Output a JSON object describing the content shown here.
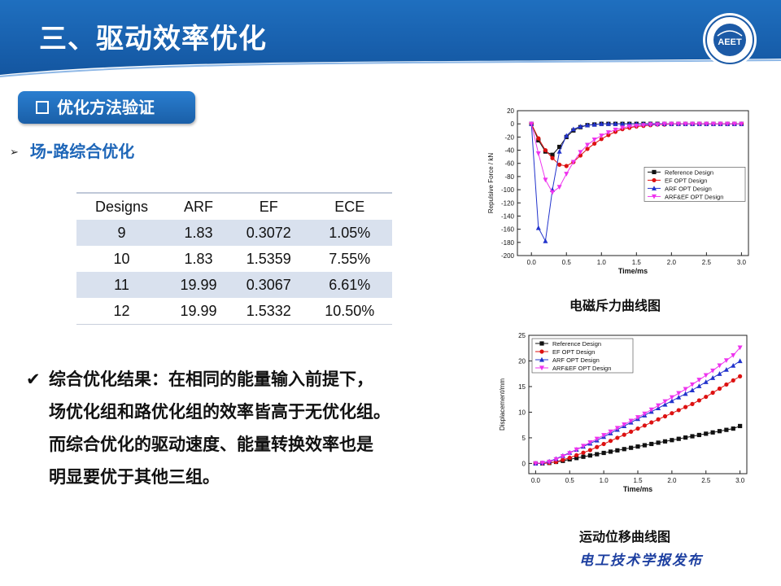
{
  "header": {
    "title": "三、驱动效率优化",
    "logo_text": "AEET"
  },
  "section_tag": "优化方法验证",
  "subtitle": "场-路综合优化",
  "table": {
    "headers": [
      "Designs",
      "ARF",
      "EF",
      "ECE"
    ],
    "rows": [
      [
        "9",
        "1.83",
        "0.3072",
        "1.05%"
      ],
      [
        "10",
        "1.83",
        "1.5359",
        "7.55%"
      ],
      [
        "11",
        "19.99",
        "0.3067",
        "6.61%"
      ],
      [
        "12",
        "19.99",
        "1.5332",
        "10.50%"
      ]
    ]
  },
  "conclusion": {
    "lines": [
      "综合优化结果：在相同的能量输入前提下，",
      "场优化组和路优化组的效率皆高于无优化组。",
      "而综合优化的驱动速度、能量转换效率也是",
      "明显要优于其他三组。"
    ]
  },
  "captions": {
    "force": "电磁斥力曲线图",
    "displacement": "运动位移曲线图"
  },
  "publisher": "电工技术学报发布",
  "chart_data": [
    {
      "type": "line",
      "title": "",
      "xlabel": "Time/ms",
      "ylabel": "Repulsive Force / kN",
      "xlim": [
        -0.2,
        3.1
      ],
      "ylim": [
        -200,
        20
      ],
      "xticks": [
        0.0,
        0.5,
        1.0,
        1.5,
        2.0,
        2.5,
        3.0
      ],
      "yticks": [
        20,
        0,
        -20,
        -40,
        -60,
        -80,
        -100,
        -120,
        -140,
        -160,
        -180,
        -200
      ],
      "legend": "middle-right",
      "series": [
        {
          "name": "Reference Design",
          "color": "#111111",
          "marker": "square",
          "x": [
            0.0,
            0.1,
            0.2,
            0.3,
            0.4,
            0.5,
            0.6,
            0.7,
            0.8,
            0.9,
            1.0,
            1.1,
            1.2,
            1.3,
            1.4,
            1.5,
            1.6,
            1.7,
            1.8,
            1.9,
            2.0,
            2.1,
            2.2,
            2.3,
            2.4,
            2.5,
            2.6,
            2.7,
            2.8,
            2.9,
            3.0
          ],
          "y": [
            0,
            -25,
            -42,
            -47,
            -35,
            -20,
            -10,
            -5,
            -2,
            -1,
            0,
            0,
            0,
            0,
            0,
            0,
            0,
            0,
            0,
            0,
            0,
            0,
            0,
            0,
            0,
            0,
            0,
            0,
            0,
            0,
            0
          ]
        },
        {
          "name": "EF OPT Design",
          "color": "#dd1111",
          "marker": "circle",
          "x": [
            0.0,
            0.1,
            0.2,
            0.3,
            0.4,
            0.5,
            0.6,
            0.7,
            0.8,
            0.9,
            1.0,
            1.1,
            1.2,
            1.3,
            1.4,
            1.5,
            1.6,
            1.7,
            1.8,
            1.9,
            2.0,
            2.1,
            2.2,
            2.3,
            2.4,
            2.5,
            2.6,
            2.7,
            2.8,
            2.9,
            3.0
          ],
          "y": [
            0,
            -22,
            -40,
            -52,
            -62,
            -64,
            -58,
            -48,
            -38,
            -30,
            -23,
            -17,
            -12,
            -8,
            -6,
            -4,
            -3,
            -2,
            -1,
            -1,
            0,
            0,
            0,
            0,
            0,
            0,
            0,
            0,
            0,
            0,
            0
          ]
        },
        {
          "name": "ARF OPT Design",
          "color": "#2233cc",
          "marker": "triangle",
          "x": [
            0.0,
            0.1,
            0.2,
            0.3,
            0.4,
            0.5,
            0.6,
            0.7,
            0.8,
            0.9,
            1.0,
            1.1,
            1.2,
            1.3,
            1.4,
            1.5,
            1.6,
            1.7,
            1.8,
            1.9,
            2.0,
            2.1,
            2.2,
            2.3,
            2.4,
            2.5,
            2.6,
            2.7,
            2.8,
            2.9,
            3.0
          ],
          "y": [
            0,
            -158,
            -178,
            -100,
            -42,
            -18,
            -8,
            -4,
            -2,
            -1,
            0,
            0,
            0,
            0,
            0,
            0,
            0,
            0,
            0,
            0,
            0,
            0,
            0,
            0,
            0,
            0,
            0,
            0,
            0,
            0,
            0
          ]
        },
        {
          "name": "ARF&EF OPT Design",
          "color": "#ee33ee",
          "marker": "triangle-down",
          "x": [
            0.0,
            0.1,
            0.2,
            0.3,
            0.4,
            0.5,
            0.6,
            0.7,
            0.8,
            0.9,
            1.0,
            1.1,
            1.2,
            1.3,
            1.4,
            1.5,
            1.6,
            1.7,
            1.8,
            1.9,
            2.0,
            2.1,
            2.2,
            2.3,
            2.4,
            2.5,
            2.6,
            2.7,
            2.8,
            2.9,
            3.0
          ],
          "y": [
            0,
            -45,
            -85,
            -104,
            -96,
            -76,
            -58,
            -43,
            -32,
            -24,
            -18,
            -13,
            -9,
            -6,
            -4,
            -3,
            -2,
            -1,
            -1,
            0,
            0,
            0,
            0,
            0,
            0,
            0,
            0,
            0,
            0,
            0,
            0
          ]
        }
      ]
    },
    {
      "type": "line",
      "title": "",
      "xlabel": "Time/ms",
      "ylabel": "Displacement/mm",
      "xlim": [
        -0.1,
        3.1
      ],
      "ylim": [
        -2,
        25
      ],
      "xticks": [
        0.0,
        0.5,
        1.0,
        1.5,
        2.0,
        2.5,
        3.0
      ],
      "yticks": [
        0,
        5,
        10,
        15,
        20,
        25
      ],
      "legend": "top-left",
      "series": [
        {
          "name": "Reference Design",
          "color": "#111111",
          "marker": "square",
          "x": [
            0.0,
            0.1,
            0.2,
            0.3,
            0.4,
            0.5,
            0.6,
            0.7,
            0.8,
            0.9,
            1.0,
            1.1,
            1.2,
            1.3,
            1.4,
            1.5,
            1.6,
            1.7,
            1.8,
            1.9,
            2.0,
            2.1,
            2.2,
            2.3,
            2.4,
            2.5,
            2.6,
            2.7,
            2.8,
            2.9,
            3.0
          ],
          "y": [
            0,
            0,
            0.1,
            0.3,
            0.5,
            0.8,
            1.05,
            1.3,
            1.55,
            1.8,
            2.05,
            2.3,
            2.55,
            2.8,
            3.05,
            3.3,
            3.55,
            3.8,
            4.05,
            4.3,
            4.55,
            4.8,
            5.05,
            5.3,
            5.55,
            5.8,
            6.05,
            6.3,
            6.55,
            6.8,
            7.3
          ]
        },
        {
          "name": "EF OPT Design",
          "color": "#dd1111",
          "marker": "circle",
          "x": [
            0.0,
            0.1,
            0.2,
            0.3,
            0.4,
            0.5,
            0.6,
            0.7,
            0.8,
            0.9,
            1.0,
            1.1,
            1.2,
            1.3,
            1.4,
            1.5,
            1.6,
            1.7,
            1.8,
            1.9,
            2.0,
            2.1,
            2.2,
            2.3,
            2.4,
            2.5,
            2.6,
            2.7,
            2.8,
            2.9,
            3.0
          ],
          "y": [
            0,
            0,
            0.1,
            0.3,
            0.7,
            1.1,
            1.6,
            2.1,
            2.6,
            3.2,
            3.8,
            4.4,
            5.0,
            5.6,
            6.2,
            6.8,
            7.4,
            8.0,
            8.6,
            9.2,
            9.8,
            10.4,
            11.0,
            11.6,
            12.3,
            13.0,
            13.8,
            14.6,
            15.4,
            16.2,
            17.0
          ]
        },
        {
          "name": "ARF OPT Design",
          "color": "#2233cc",
          "marker": "triangle",
          "x": [
            0.0,
            0.1,
            0.2,
            0.3,
            0.4,
            0.5,
            0.6,
            0.7,
            0.8,
            0.9,
            1.0,
            1.1,
            1.2,
            1.3,
            1.4,
            1.5,
            1.6,
            1.7,
            1.8,
            1.9,
            2.0,
            2.1,
            2.2,
            2.3,
            2.4,
            2.5,
            2.6,
            2.7,
            2.8,
            2.9,
            3.0
          ],
          "y": [
            0,
            0.1,
            0.4,
            0.9,
            1.5,
            2.1,
            2.7,
            3.3,
            3.9,
            4.5,
            5.2,
            5.9,
            6.6,
            7.3,
            8.0,
            8.7,
            9.4,
            10.1,
            10.8,
            11.5,
            12.2,
            12.9,
            13.6,
            14.3,
            15.1,
            15.9,
            16.7,
            17.5,
            18.3,
            19.1,
            20.0
          ]
        },
        {
          "name": "ARF&EF OPT Design",
          "color": "#ee33ee",
          "marker": "triangle-down",
          "x": [
            0.0,
            0.1,
            0.2,
            0.3,
            0.4,
            0.5,
            0.6,
            0.7,
            0.8,
            0.9,
            1.0,
            1.1,
            1.2,
            1.3,
            1.4,
            1.5,
            1.6,
            1.7,
            1.8,
            1.9,
            2.0,
            2.1,
            2.2,
            2.3,
            2.4,
            2.5,
            2.6,
            2.7,
            2.8,
            2.9,
            3.0
          ],
          "y": [
            0,
            0.1,
            0.3,
            0.8,
            1.4,
            2.0,
            2.7,
            3.4,
            4.1,
            4.8,
            5.5,
            6.2,
            6.9,
            7.6,
            8.3,
            9.0,
            9.7,
            10.5,
            11.3,
            12.1,
            12.9,
            13.7,
            14.5,
            15.4,
            16.3,
            17.2,
            18.1,
            19.1,
            20.1,
            21.1,
            22.6
          ]
        }
      ]
    }
  ]
}
